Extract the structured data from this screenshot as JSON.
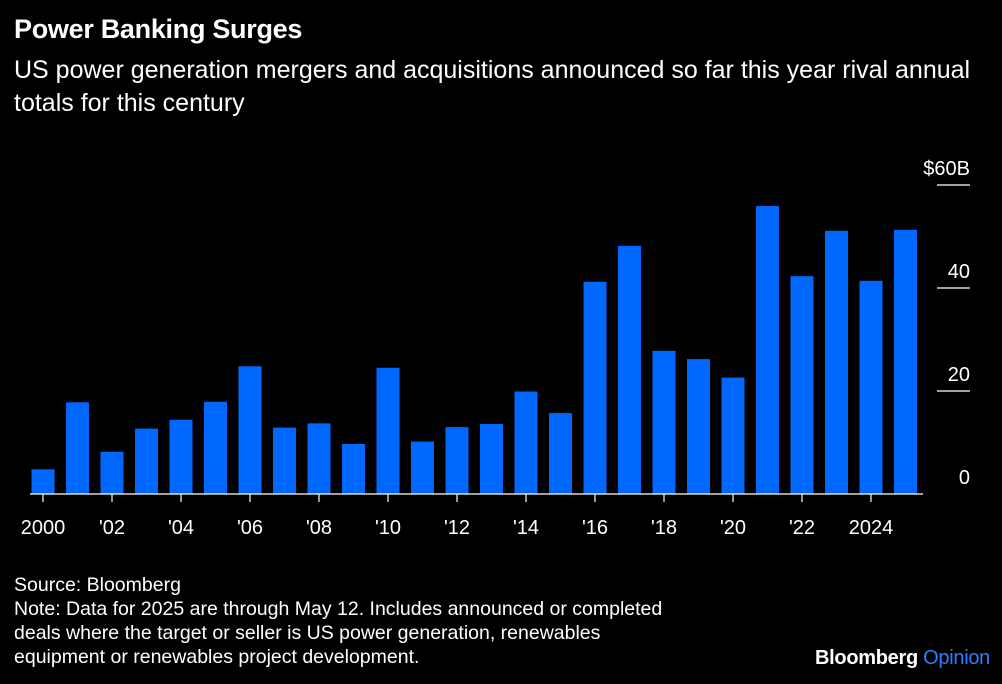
{
  "header": {
    "title": "Power Banking Surges",
    "subtitle": "US power generation mergers and acquisitions announced so far this year rival annual totals for this century"
  },
  "chart_data": {
    "type": "bar",
    "title": "Power Banking Surges",
    "subtitle": "US power generation mergers and acquisitions announced so far this year rival annual totals for this century",
    "xlabel": "",
    "ylabel": "",
    "unit": "USD billions",
    "categories": [
      "2000",
      "2001",
      "2002",
      "2003",
      "2004",
      "2005",
      "2006",
      "2007",
      "2008",
      "2009",
      "2010",
      "2011",
      "2012",
      "2013",
      "2014",
      "2015",
      "2016",
      "2017",
      "2018",
      "2019",
      "2020",
      "2021",
      "2022",
      "2023",
      "2024",
      "2025"
    ],
    "x_tick_labels": [
      {
        "category": "2000",
        "label": "2000"
      },
      {
        "category": "2002",
        "label": "'02"
      },
      {
        "category": "2004",
        "label": "'04"
      },
      {
        "category": "2006",
        "label": "'06"
      },
      {
        "category": "2008",
        "label": "'08"
      },
      {
        "category": "2010",
        "label": "'10"
      },
      {
        "category": "2012",
        "label": "'12"
      },
      {
        "category": "2014",
        "label": "'14"
      },
      {
        "category": "2016",
        "label": "'16"
      },
      {
        "category": "2018",
        "label": "'18"
      },
      {
        "category": "2020",
        "label": "'20"
      },
      {
        "category": "2022",
        "label": "'22"
      },
      {
        "category": "2024",
        "label": "2024"
      }
    ],
    "values": [
      4.8,
      17.8,
      8.2,
      12.7,
      14.4,
      17.9,
      24.8,
      12.9,
      13.7,
      9.7,
      24.5,
      10.2,
      13.0,
      13.6,
      19.9,
      15.7,
      41.2,
      48.2,
      27.8,
      26.2,
      22.6,
      55.9,
      42.3,
      51.1,
      41.4,
      51.3
    ],
    "ylim": [
      0,
      60
    ],
    "y_ticks": [
      {
        "value": 0,
        "label": "0"
      },
      {
        "value": 20,
        "label": "20"
      },
      {
        "value": 40,
        "label": "40"
      },
      {
        "value": 60,
        "label": "$60B"
      }
    ],
    "grid": false,
    "axis_side": "right",
    "legend": "none",
    "bar_color": "#0068FF",
    "axis_color": "#ffffff"
  },
  "footer": {
    "source": "Source: Bloomberg",
    "note": "Note: Data for 2025 are through May 12. Includes announced or completed\ndeals where the target or seller is US power generation, renewables\nequipment or renewables project development."
  },
  "brand": {
    "name": "Bloomberg",
    "section": "Opinion"
  },
  "colors": {
    "background": "#000000",
    "text": "#ffffff",
    "bar": "#0068FF",
    "brand_accent": "#2f7dff"
  }
}
